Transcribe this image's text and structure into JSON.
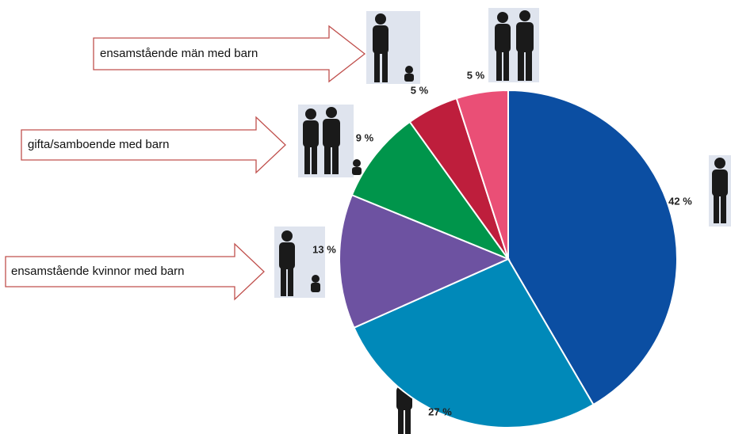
{
  "chart_data": {
    "type": "pie",
    "values": [
      42,
      27,
      13,
      9,
      5,
      5
    ],
    "value_labels": [
      "42 %",
      "27 %",
      "13 %",
      "9 %",
      "5 %",
      "5 %"
    ],
    "colors": [
      "#0b4ea2",
      "#0089b9",
      "#6d52a1",
      "#00954b",
      "#be1e3c",
      "#ea4f76"
    ],
    "annotations": [
      "ensamstående män med barn",
      "gifta/samboende med barn",
      "ensamstående kvinnor med barn"
    ]
  }
}
